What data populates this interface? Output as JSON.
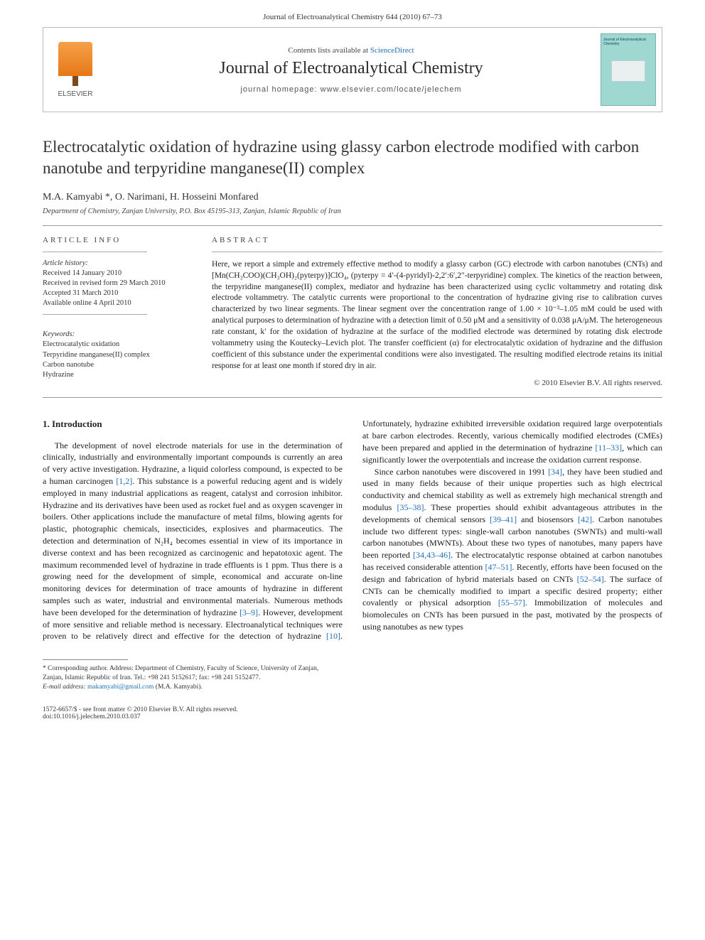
{
  "running_head": "Journal of Electroanalytical Chemistry 644 (2010) 67–73",
  "banner": {
    "contents_prefix": "Contents lists available at ",
    "contents_link": "ScienceDirect",
    "journal_name": "Journal of Electroanalytical Chemistry",
    "homepage_label": "journal homepage: www.elsevier.com/locate/jelechem",
    "publisher": "ELSEVIER",
    "cover_title": "Journal of Electroanalytical Chemistry"
  },
  "title": "Electrocatalytic oxidation of hydrazine using glassy carbon electrode modified with carbon nanotube and terpyridine manganese(II) complex",
  "authors": "M.A. Kamyabi *, O. Narimani, H. Hosseini Monfared",
  "affiliation": "Department of Chemistry, Zanjan University, P.O. Box 45195-313, Zanjan, Islamic Republic of Iran",
  "article_info": {
    "heading": "ARTICLE INFO",
    "history_head": "Article history:",
    "history": [
      "Received 14 January 2010",
      "Received in revised form 29 March 2010",
      "Accepted 31 March 2010",
      "Available online 4 April 2010"
    ],
    "keywords_head": "Keywords:",
    "keywords": [
      "Electrocatalytic oxidation",
      "Terpyridine manganese(II) complex",
      "Carbon nanotube",
      "Hydrazine"
    ]
  },
  "abstract": {
    "heading": "ABSTRACT",
    "text": "Here, we report a simple and extremely effective method to modify a glassy carbon (GC) electrode with carbon nanotubes (CNTs) and [Mn(CH₃COO)(CH₃OH)₂(pyterpy)]ClO₄, (pyterpy = 4′-(4-pyridyl)-2,2′:6′,2″-terpyridine) complex. The kinetics of the reaction between, the terpyridine manganese(II) complex, mediator and hydrazine has been characterized using cyclic voltammetry and rotating disk electrode voltammetry. The catalytic currents were proportional to the concentration of hydrazine giving rise to calibration curves characterized by two linear segments. The linear segment over the concentration range of 1.00 × 10⁻³–1.05 mM could be used with analytical purposes to determination of hydrazine with a detection limit of 0.50 μM and a sensitivity of 0.038 μA/μM. The heterogeneous rate constant, k′ for the oxidation of hydrazine at the surface of the modified electrode was determined by rotating disk electrode voltammetry using the Koutecky–Levich plot. The transfer coefficient (α) for electrocatalytic oxidation of hydrazine and the diffusion coefficient of this substance under the experimental conditions were also investigated. The resulting modified electrode retains its initial response for at least one month if stored dry in air.",
    "copyright": "© 2010 Elsevier B.V. All rights reserved."
  },
  "intro_heading": "1. Introduction",
  "intro_p1_a": "The development of novel electrode materials for use in the determination of clinically, industrially and environmentally important compounds is currently an area of very active investigation. Hydrazine, a liquid colorless compound, is expected to be a human carcinogen ",
  "ref_1_2": "[1,2]",
  "intro_p1_b": ". This substance is a powerful reducing agent and is widely employed in many industrial applications as reagent, catalyst and corrosion inhibitor. Hydrazine and its derivatives have been used as rocket fuel and as oxygen scavenger in boilers. Other applications include the manufacture of metal films, blowing agents for plastic, photographic chemicals, insecticides, explosives and pharmaceutics. The detection and determination of N₂H₄ becomes essential in view of its importance in diverse context and has been recognized as carcinogenic and hepatotoxic agent. The maximum recommended level of hydrazine in trade effluents is 1 ppm. Thus there is a growing need for the development of simple, economical and accurate on-line monitoring devices for determination of trace amounts of hydrazine in different samples such as water, industrial and environmental materials. Numerous methods have been developed for the determination of hydrazine ",
  "ref_3_9": "[3–9]",
  "intro_p1_c": ". However, development of more sensitive and reliable method is necessary. Electroanalytical techniques were proven to be relatively direct and effective for the detection of hydrazine ",
  "ref_10": "[10]",
  "intro_p1_d": ". Unfortunately, hydrazine exhibited irreversible oxidation required large overpotentials at bare carbon electrodes. Recently, various chemically modified electrodes (CMEs) have been prepared and applied in the determination of hydrazine ",
  "ref_11_33": "[11–33]",
  "intro_p1_e": ", which can significantly lower the overpotentials and increase the oxidation current response.",
  "intro_p2_a": "Since carbon nanotubes were discovered in 1991 ",
  "ref_34": "[34]",
  "intro_p2_b": ", they have been studied and used in many fields because of their unique properties such as high electrical conductivity and chemical stability as well as extremely high mechanical strength and modulus ",
  "ref_35_38": "[35–38]",
  "intro_p2_c": ". These properties should exhibit advantageous attributes in the developments of chemical sensors ",
  "ref_39_41": "[39–41]",
  "intro_p2_d": " and biosensors ",
  "ref_42": "[42]",
  "intro_p2_e": ". Carbon nanotubes include two different types: single-wall carbon nanotubes (SWNTs) and multi-wall carbon nanotubes (MWNTs). About these two types of nanotubes, many papers have been reported ",
  "ref_34_43_46": "[34,43–46]",
  "intro_p2_f": ". The electrocatalytic response obtained at carbon nanotubes has received considerable attention ",
  "ref_47_51": "[47–51]",
  "intro_p2_g": ". Recently, efforts have been focused on the design and fabrication of hybrid materials based on CNTs ",
  "ref_52_54": "[52–54]",
  "intro_p2_h": ". The surface of CNTs can be chemically modified to impart a specific desired property; either covalently or physical adsorption ",
  "ref_55_57": "[55–57]",
  "intro_p2_i": ". Immobilization of molecules and biomolecules on CNTs has been pursued in the past, motivated by the prospects of using nanotubes as new types",
  "footer": {
    "corr": "* Corresponding author. Address: Department of Chemistry, Faculty of Science, University of Zanjan, Zanjan, Islamic Republic of Iran. Tel.: +98 241 5152617; fax: +98 241 5152477.",
    "email_label": "E-mail address: ",
    "email": "makamyabi@gmail.com",
    "email_tail": " (M.A. Kamyabi).",
    "issn": "1572-6657/$ - see front matter © 2010 Elsevier B.V. All rights reserved.",
    "doi": "doi:10.1016/j.jelechem.2010.03.037"
  }
}
